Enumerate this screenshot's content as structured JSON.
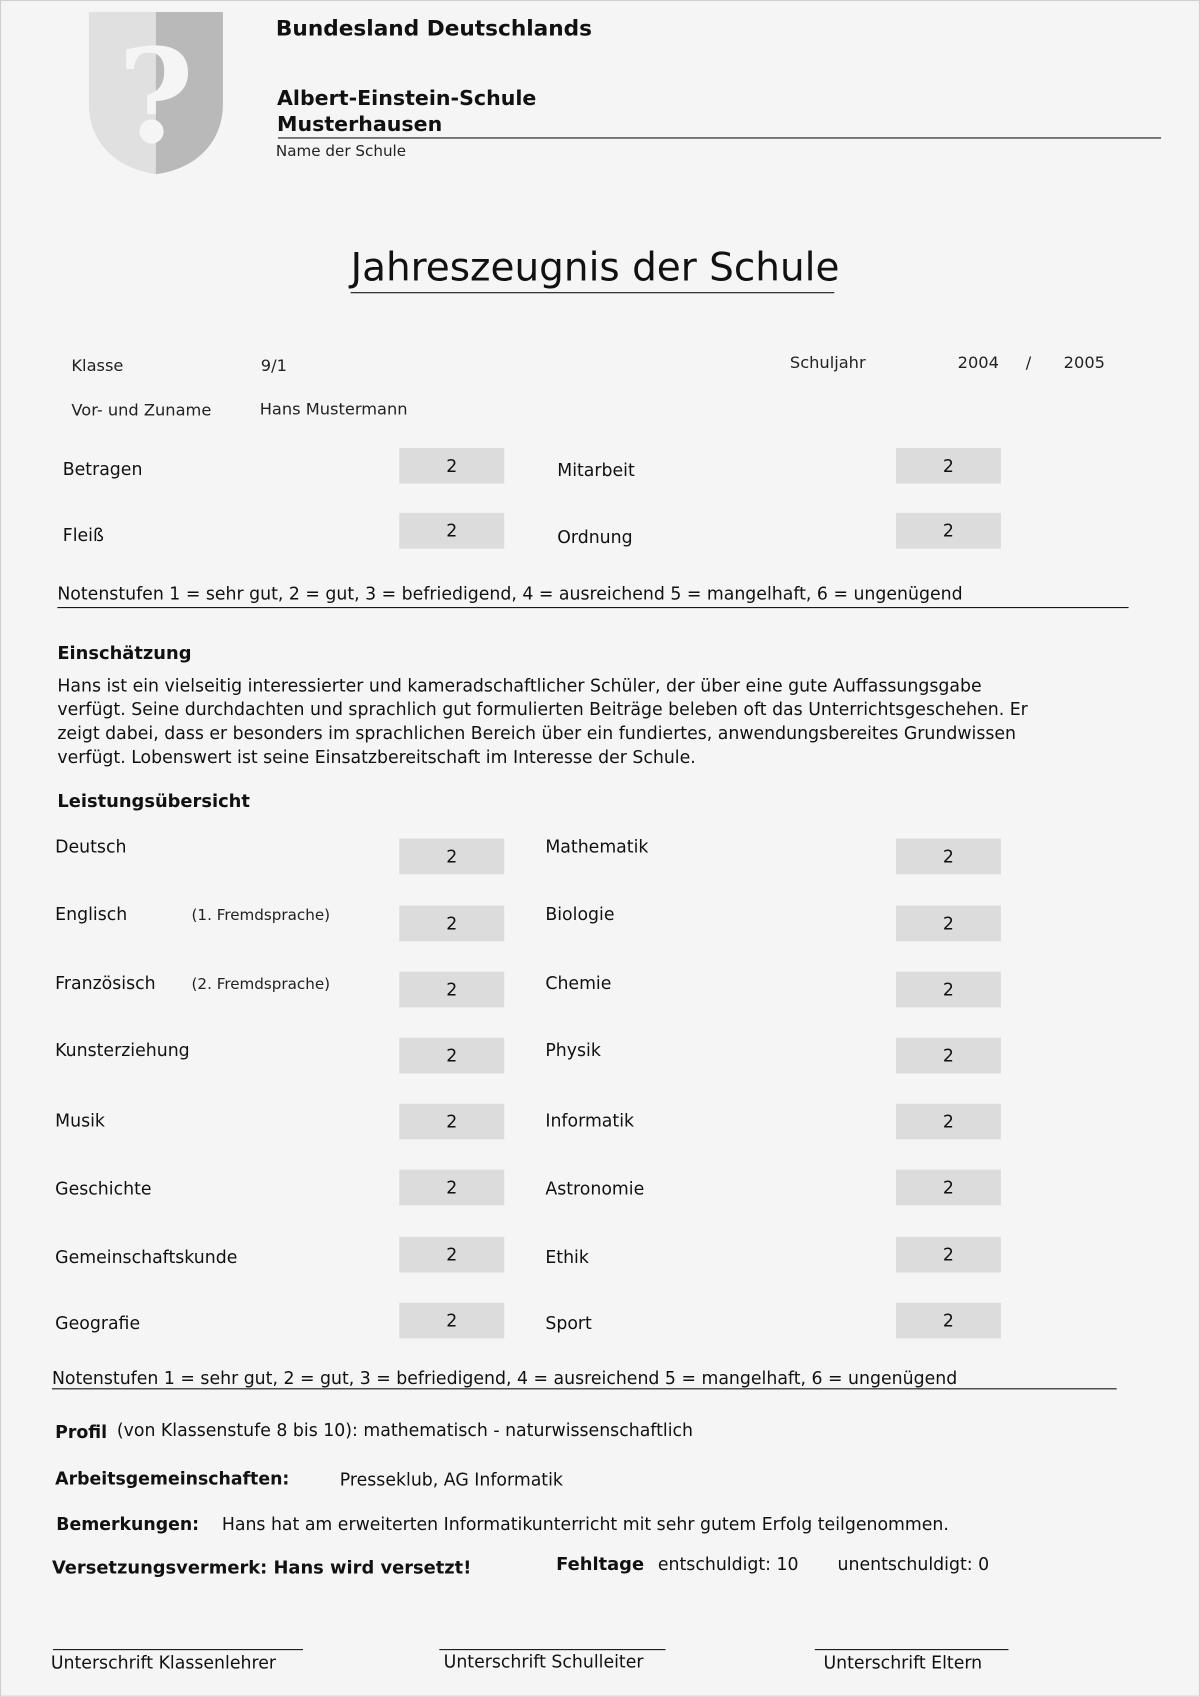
{
  "header": {
    "state": "Bundesland Deutschlands",
    "school_line1": "Albert-Einstein-Schule",
    "school_line2": "Musterhausen",
    "school_caption": "Name der Schule",
    "crest_icon": "question-mark-shield"
  },
  "title": "Jahreszeugnis der Schule",
  "info": {
    "class_label": "Klasse",
    "class_value": "9/1",
    "year_label": "Schuljahr",
    "year_from": "2004",
    "year_sep": "/",
    "year_to": "2005",
    "name_label": "Vor- und Zuname",
    "name_value": "Hans Mustermann"
  },
  "conduct": [
    {
      "label": "Betragen",
      "grade": "2"
    },
    {
      "label": "Mitarbeit",
      "grade": "2"
    },
    {
      "label": "Fleiß",
      "grade": "2"
    },
    {
      "label": "Ordnung",
      "grade": "2"
    }
  ],
  "scale_note": "Notenstufen 1 = sehr gut, 2 = gut, 3 = befriedigend, 4 = ausreichend 5 = mangelhaft, 6 = ungenügend",
  "assessment": {
    "heading": "Einschätzung",
    "lines": [
      "Hans ist ein vielseitig interessierter und kameradschaftlicher Schüler, der über eine gute Auffassungsgabe",
      "verfügt. Seine durchdachten und sprachlich gut formulierten Beiträge beleben oft das Unterrichtsgeschehen. Er",
      "zeigt dabei, dass er besonders im sprachlichen Bereich über ein fundiertes, anwendungsbereites Grundwissen",
      "verfügt. Lobenswert ist seine Einsatzbereitschaft im Interesse der Schule."
    ]
  },
  "performance": {
    "heading": "Leistungsübersicht",
    "left": [
      {
        "label": "Deutsch",
        "note": "",
        "grade": "2"
      },
      {
        "label": "Englisch",
        "note": "(1. Fremdsprache)",
        "grade": "2"
      },
      {
        "label": "Französisch",
        "note": "(2. Fremdsprache)",
        "grade": "2"
      },
      {
        "label": "Kunsterziehung",
        "note": "",
        "grade": "2"
      },
      {
        "label": "Musik",
        "note": "",
        "grade": "2"
      },
      {
        "label": "Geschichte",
        "note": "",
        "grade": "2"
      },
      {
        "label": "Gemeinschaftskunde",
        "note": "",
        "grade": "2"
      },
      {
        "label": "Geografie",
        "note": "",
        "grade": "2"
      }
    ],
    "right": [
      {
        "label": "Mathematik",
        "grade": "2"
      },
      {
        "label": "Biologie",
        "grade": "2"
      },
      {
        "label": "Chemie",
        "grade": "2"
      },
      {
        "label": "Physik",
        "grade": "2"
      },
      {
        "label": "Informatik",
        "grade": "2"
      },
      {
        "label": "Astronomie",
        "grade": "2"
      },
      {
        "label": "Ethik",
        "grade": "2"
      },
      {
        "label": "Sport",
        "grade": "2"
      }
    ]
  },
  "footer": {
    "profile_label": "Profil",
    "profile_value": "(von Klassenstufe 8 bis 10): mathematisch - naturwissenschaftlich",
    "ag_label": "Arbeitsgemeinschaften:",
    "ag_value": "Presseklub, AG Informatik",
    "remarks_label": "Bemerkungen:",
    "remarks_value": "Hans hat am erweiterten Informatikunterricht mit sehr gutem Erfolg teilgenommen.",
    "promotion": "Versetzungsvermerk: Hans wird versetzt!",
    "absence_label": "Fehltage",
    "excused": "entschuldigt: 10",
    "unexcused": "unentschuldigt: 0"
  },
  "signatures": [
    "Unterschrift Klassenlehrer",
    "Unterschrift Schulleiter",
    "Unterschrift Eltern"
  ]
}
